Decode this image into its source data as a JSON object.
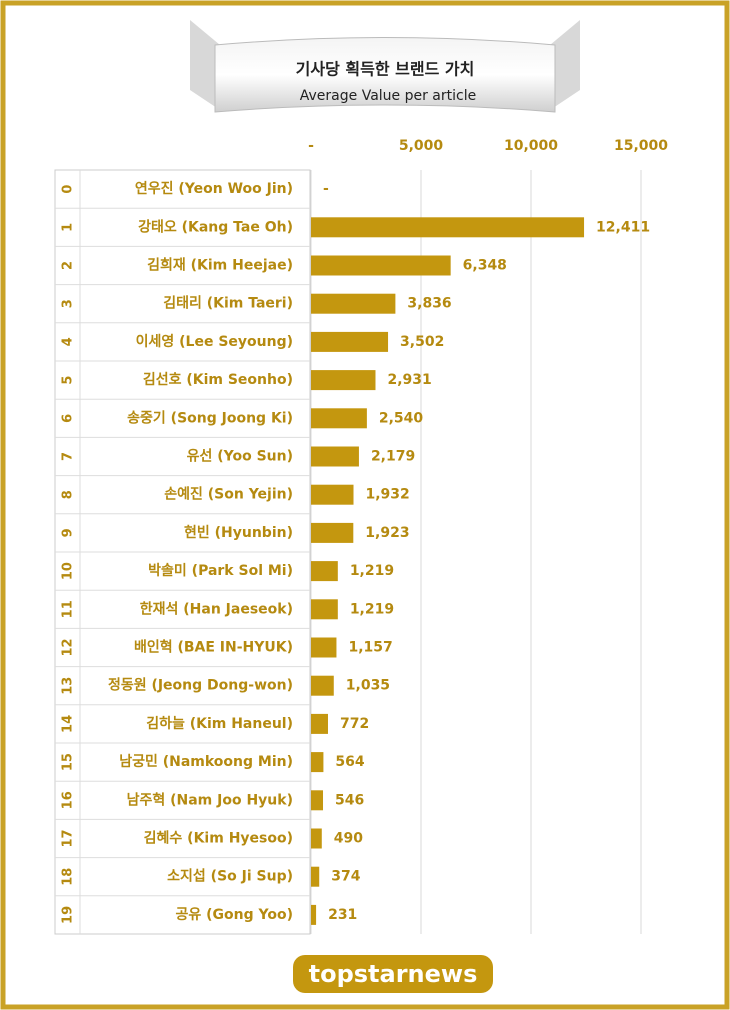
{
  "chart_data": {
    "type": "bar",
    "orientation": "horizontal",
    "title": "기사당 획득한 브랜드 가치",
    "subtitle": "Average Value per article",
    "rank_labels": [
      "0",
      "1",
      "2",
      "3",
      "4",
      "5",
      "6",
      "7",
      "8",
      "9",
      "10",
      "11",
      "12",
      "13",
      "14",
      "15",
      "16",
      "17",
      "18",
      "19"
    ],
    "categories": [
      "연우진 (Yeon Woo Jin)",
      "강태오 (Kang Tae Oh)",
      "김희재 (Kim Heejae)",
      "김태리 (Kim Taeri)",
      "이세영 (Lee Seyoung)",
      "김선호 (Kim Seonho)",
      "송중기 (Song Joong Ki)",
      "유선 (Yoo Sun)",
      "손예진 (Son Yejin)",
      "현빈 (Hyunbin)",
      "박솔미 (Park Sol Mi)",
      "한재석 (Han Jaeseok)",
      "배인혁 (BAE IN-HYUK)",
      "정동원 (Jeong Dong-won)",
      "김하늘 (Kim Haneul)",
      "남궁민 (Namkoong Min)",
      "남주혁 (Nam Joo Hyuk)",
      "김혜수 (Kim Hyesoo)",
      "소지섭 (So Ji Sup)",
      "공유 (Gong Yoo)"
    ],
    "values": [
      0,
      12411,
      6348,
      3836,
      3502,
      2931,
      2540,
      2179,
      1932,
      1923,
      1219,
      1219,
      1157,
      1035,
      772,
      564,
      546,
      490,
      374,
      231
    ],
    "value_labels": [
      "-",
      "12,411",
      "6,348",
      "3,836",
      "3,502",
      "2,931",
      "2,540",
      "2,179",
      "1,932",
      "1,923",
      "1,219",
      "1,219",
      "1,157",
      "1,035",
      "772",
      "564",
      "546",
      "490",
      "374",
      "231"
    ],
    "color": "#c4970f",
    "xlim": [
      0,
      15000
    ],
    "xticks": [
      {
        "value": 0,
        "label": "-"
      },
      {
        "value": 5000,
        "label": "5,000"
      },
      {
        "value": 10000,
        "label": "10,000"
      },
      {
        "value": 15000,
        "label": "15,000"
      }
    ],
    "grid": true,
    "footer": "topstarnews"
  }
}
